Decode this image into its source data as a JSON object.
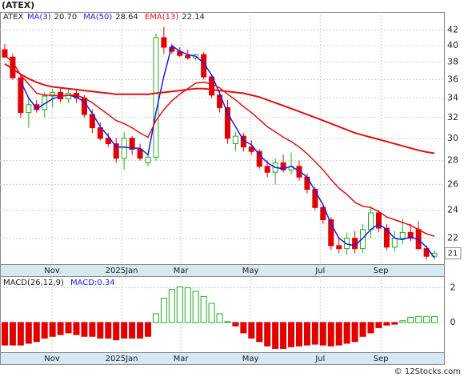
{
  "chart_data": [
    {
      "type": "candlestick",
      "title": "(ATEX)",
      "symbol": "ATEX",
      "log_scale": true,
      "grid": true,
      "open": [
        39.5,
        38.6,
        36.2,
        32.5,
        33.3,
        32.8,
        34.2,
        34.6,
        33.9,
        34.5,
        34,
        32.3,
        31,
        30,
        29.5,
        28.2,
        30,
        29,
        27.8,
        28.3,
        41,
        39.8,
        39.3,
        38.8,
        38.5,
        38.9,
        36.3,
        34.3,
        33,
        29.5,
        30.2,
        29.2,
        28.8,
        27.5,
        27,
        27.8,
        27.2,
        27.5,
        26.6,
        25.6,
        24.2,
        23.3,
        21.5,
        21.3,
        22,
        21.3,
        22.6,
        23.8,
        22.7,
        21.4,
        22,
        22.4,
        22.6,
        21.3,
        20.8
      ],
      "high": [
        40.2,
        39,
        36.5,
        34,
        33.8,
        34.6,
        35,
        35,
        35,
        35,
        34.3,
        32.8,
        31.5,
        30.5,
        30,
        30.6,
        30.2,
        29.5,
        28.6,
        41.5,
        42.4,
        40.2,
        39.8,
        39.5,
        39,
        39.2,
        36.6,
        34.8,
        33.8,
        30.6,
        30.5,
        29.8,
        29,
        28,
        28.2,
        28.5,
        28.7,
        28,
        26.9,
        25.8,
        24.5,
        23.5,
        22,
        22.4,
        22.5,
        23,
        24.3,
        24,
        23,
        22.5,
        23.4,
        23,
        23.2,
        21.5,
        21.2
      ],
      "low": [
        38.5,
        36,
        32,
        31,
        32.5,
        32,
        33,
        33.5,
        33.5,
        33.5,
        32,
        30.5,
        29.8,
        29.2,
        27.8,
        27.2,
        28.5,
        28,
        27.5,
        28,
        39,
        39,
        38.6,
        38.3,
        38.2,
        36,
        34,
        32.5,
        29.5,
        28.8,
        28.8,
        28.5,
        27.3,
        26.6,
        26,
        27,
        26.8,
        26.3,
        25.3,
        24,
        23,
        21.2,
        21,
        20.9,
        21,
        21,
        22,
        22.4,
        21.2,
        21.1,
        21.6,
        21.8,
        21.2,
        20.6,
        20.6
      ],
      "close": [
        38.6,
        36.2,
        32.5,
        33.3,
        32.8,
        34.2,
        34.6,
        33.9,
        34.5,
        34,
        32.3,
        31,
        30,
        29.5,
        28.2,
        30,
        29,
        28.2,
        28.3,
        41,
        39.8,
        39.3,
        38.8,
        38.5,
        38.9,
        36.3,
        34.3,
        33,
        30,
        30.2,
        29.2,
        28.8,
        27.5,
        27,
        27.8,
        27.2,
        27.5,
        26.6,
        25.6,
        24.2,
        23.3,
        21.5,
        21.3,
        22,
        21.3,
        22.6,
        23.8,
        22.7,
        21.4,
        22,
        22.4,
        22,
        21.3,
        20.8,
        21
      ],
      "up_color": "#22aa22",
      "down_color": "#e00000",
      "series": [
        {
          "name": "MA(3)",
          "color": "#1a1aee",
          "legend_color": "#1a1aee",
          "legend_value": "20.70",
          "values": [
            null,
            null,
            35.8,
            34,
            32.9,
            33.4,
            33.9,
            34.2,
            34.3,
            34.1,
            33.6,
            32.4,
            31.1,
            30.2,
            29.2,
            29.2,
            29.1,
            29.1,
            28.5,
            32.5,
            36.4,
            40,
            39.3,
            38.9,
            38.7,
            37.9,
            36.5,
            34.5,
            32.4,
            31.1,
            29.8,
            29.4,
            28.5,
            27.8,
            27.4,
            27.3,
            27.5,
            27.1,
            26.6,
            25.5,
            24.4,
            23,
            22,
            21.6,
            21.5,
            22,
            22.6,
            23,
            22.6,
            22,
            21.9,
            22.1,
            21.9,
            21.4,
            20.7
          ]
        },
        {
          "name": "MA(50)",
          "color": "#e01010",
          "legend_color": "#1a1aee",
          "legend_value": "28.64",
          "values": [
            37.8,
            37.2,
            36.6,
            36.1,
            35.7,
            35.4,
            35.2,
            35.1,
            35,
            34.9,
            34.8,
            34.7,
            34.6,
            34.5,
            34.4,
            34.4,
            34.4,
            34.4,
            34.4,
            34.5,
            34.6,
            34.7,
            34.8,
            34.9,
            35,
            35,
            34.9,
            34.8,
            34.7,
            34.6,
            34.5,
            34.3,
            34.1,
            33.8,
            33.5,
            33.2,
            32.9,
            32.6,
            32.3,
            32,
            31.7,
            31.4,
            31.1,
            30.8,
            30.5,
            30.3,
            30.1,
            29.9,
            29.7,
            29.5,
            29.3,
            29.1,
            28.9,
            28.75,
            28.64
          ]
        },
        {
          "name": "EMA(13)",
          "color": "#e01010",
          "legend_color": "#e01010",
          "legend_value": "22.14",
          "values": [
            38.8,
            38,
            36.5,
            35.5,
            34.5,
            34.3,
            34.3,
            34.2,
            34.3,
            34.3,
            34,
            33.5,
            32.9,
            32.3,
            31.7,
            31.4,
            31,
            30.5,
            30.1,
            31.7,
            32.8,
            33.7,
            34.4,
            35,
            35.6,
            35.7,
            35.5,
            35.1,
            34.4,
            33.8,
            33.1,
            32.5,
            31.8,
            31.1,
            30.6,
            30.1,
            29.7,
            29.2,
            28.6,
            27.9,
            27.2,
            26.4,
            25.7,
            25.2,
            24.6,
            24.3,
            24.2,
            23.9,
            23.5,
            23.3,
            23.1,
            22.9,
            22.6,
            22.3,
            22.14
          ]
        }
      ],
      "xlim": [
        -0.6,
        55.2
      ],
      "xticks": [
        {
          "value": 5.94,
          "label": "Nov"
        },
        {
          "value": 14.69,
          "label": "2025Jan"
        },
        {
          "value": 22.13,
          "label": "Mar"
        },
        {
          "value": 30.88,
          "label": "May"
        },
        {
          "value": 39.64,
          "label": "Jul"
        },
        {
          "value": 47.28,
          "label": "Sep"
        }
      ],
      "ylim": [
        20.3,
        44.4
      ],
      "yticks": [
        22,
        24,
        26,
        28,
        30,
        32,
        34,
        36,
        38,
        40,
        42
      ]
    },
    {
      "type": "bar",
      "title": "MACD(26,12,9)",
      "subtitle": "MACD:0.34",
      "grid": true,
      "pos_color": "#22aa22",
      "neg_color": "#e00000",
      "values": [
        -1.3,
        -1.3,
        -1.3,
        -1.2,
        -1.1,
        -0.9,
        -0.8,
        -0.7,
        -0.6,
        -0.7,
        -0.8,
        -0.8,
        -0.9,
        -0.9,
        -1.0,
        -0.9,
        -0.9,
        -0.9,
        -0.8,
        0.5,
        1.4,
        1.9,
        2.05,
        2.0,
        1.8,
        1.5,
        1.1,
        0.5,
        0.05,
        -0.2,
        -0.6,
        -0.9,
        -1.1,
        -1.35,
        -1.5,
        -1.5,
        -1.4,
        -1.35,
        -1.3,
        -1.25,
        -1.3,
        -1.35,
        -1.3,
        -1.2,
        -1.1,
        -0.8,
        -0.6,
        -0.3,
        -0.15,
        -0.1,
        0.1,
        0.3,
        0.35,
        0.35,
        0.34
      ],
      "xlim": [
        -0.6,
        55.2
      ],
      "xticks": [
        {
          "value": 5.94,
          "label": "Nov"
        },
        {
          "value": 14.69,
          "label": "2025Jan"
        },
        {
          "value": 22.13,
          "label": "Mar"
        },
        {
          "value": 30.88,
          "label": "May"
        },
        {
          "value": 39.64,
          "label": "Jul"
        },
        {
          "value": 47.28,
          "label": "Sep"
        }
      ],
      "ylim": [
        -1.71,
        2.67
      ],
      "yticks": [
        0,
        2
      ]
    }
  ],
  "footer": "© 12Stocks.com"
}
